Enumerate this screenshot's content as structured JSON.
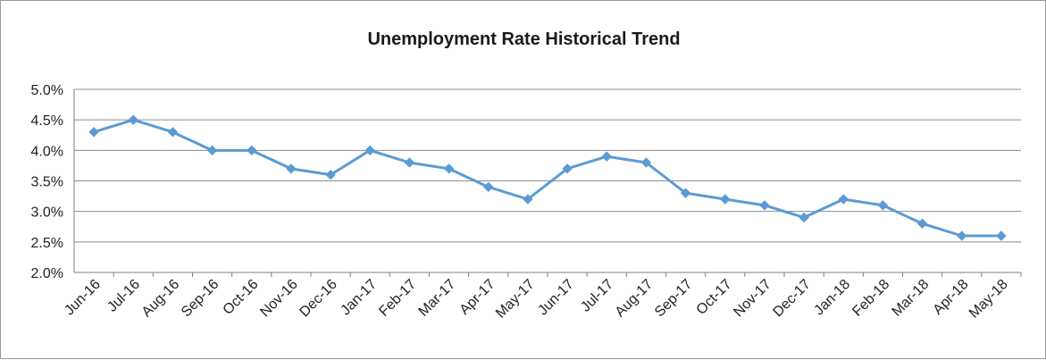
{
  "chart_data": {
    "type": "line",
    "title": "Unemployment Rate Historical Trend",
    "xlabel": "",
    "ylabel": "",
    "ylim": [
      2.0,
      5.0
    ],
    "yticks": [
      "2.0%",
      "2.5%",
      "3.0%",
      "3.5%",
      "4.0%",
      "4.5%",
      "5.0%"
    ],
    "grid": "horizontal",
    "legend": "none",
    "color": "#5b9bd5",
    "categories": [
      "Jun-16",
      "Jul-16",
      "Aug-16",
      "Sep-16",
      "Oct-16",
      "Nov-16",
      "Dec-16",
      "Jan-17",
      "Feb-17",
      "Mar-17",
      "Apr-17",
      "May-17",
      "Jun-17",
      "Jul-17",
      "Aug-17",
      "Sep-17",
      "Oct-17",
      "Nov-17",
      "Dec-17",
      "Jan-18",
      "Feb-18",
      "Mar-18",
      "Apr-18",
      "May-18"
    ],
    "series": [
      {
        "values": [
          4.3,
          4.5,
          4.3,
          4.0,
          4.0,
          3.7,
          3.6,
          4.0,
          3.8,
          3.7,
          3.4,
          3.2,
          3.7,
          3.9,
          3.8,
          3.3,
          3.2,
          3.1,
          2.9,
          3.2,
          3.1,
          2.8,
          2.6,
          2.6
        ]
      }
    ]
  }
}
